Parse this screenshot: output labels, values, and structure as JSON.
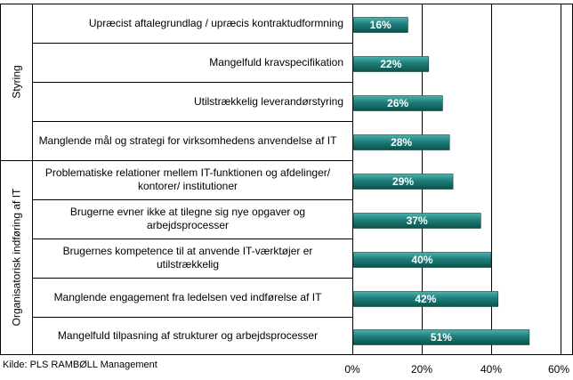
{
  "chart_data": {
    "type": "bar",
    "orientation": "horizontal",
    "groups": [
      {
        "name": "Styring",
        "categories": [
          0,
          1,
          2,
          3
        ]
      },
      {
        "name": "Organisatorisk indføring af IT",
        "categories": [
          4,
          5,
          6,
          7,
          8
        ]
      }
    ],
    "categories": [
      "Upræcist aftalegrundlag / upræcis kontraktudformning",
      "Mangelfuld kravspecifikation",
      "Utilstrækkelig leverandørstyring",
      "Manglende mål og strategi for virksomhedens anvendelse af IT",
      "Problematiske relationer mellem IT-funktionen og afdelinger/ kontorer/ institutioner",
      "Brugerne evner ikke at tilegne sig nye opgaver og arbejdsprocesser",
      "Brugernes kompetence til at anvende IT-værktøjer er utilstrækkelig",
      "Manglende engagement fra ledelsen ved indførelse af IT",
      "Mangelfuld tilpasning af strukturer og arbejdsprocesser"
    ],
    "values": [
      16,
      22,
      26,
      28,
      29,
      37,
      40,
      42,
      51
    ],
    "data_labels": [
      "16%",
      "22%",
      "26%",
      "28%",
      "29%",
      "37%",
      "40%",
      "42%",
      "51%"
    ],
    "xlim": [
      0,
      60
    ],
    "x_ticks": [
      "0%",
      "20%",
      "40%",
      "60%"
    ],
    "grid": true,
    "bar_color": "#1d7f7a",
    "title": "",
    "xlabel": "",
    "ylabel": ""
  },
  "source": "Kilde: PLS RAMBØLL Management"
}
